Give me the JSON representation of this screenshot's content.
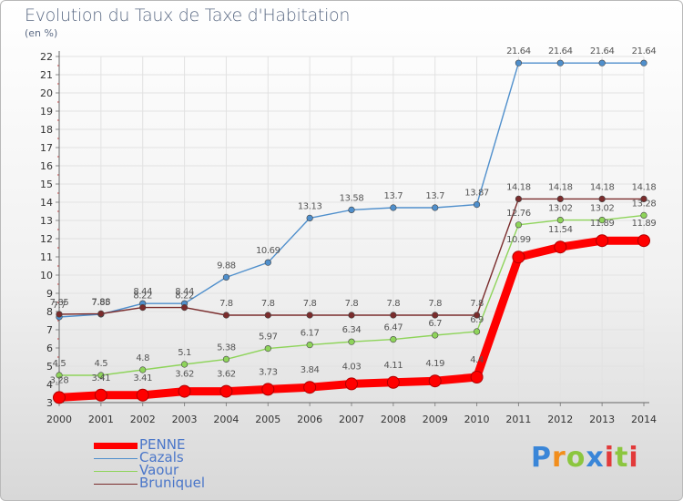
{
  "title": "Evolution du Taux de Taxe d'Habitation",
  "unit": "(en %)",
  "logo": "Proxiti",
  "chart_data": {
    "type": "line",
    "title": "Evolution du Taux de Taxe d'Habitation",
    "ylabel": "(en %)",
    "xlabel": "",
    "ylim": [
      3,
      22
    ],
    "grid": true,
    "legend_position": "bottom-left",
    "x": [
      "2000",
      "2001",
      "2002",
      "2003",
      "2004",
      "2005",
      "2006",
      "2007",
      "2008",
      "2009",
      "2010",
      "2011",
      "2012",
      "2013",
      "2014"
    ],
    "yticks": [
      "3",
      "4",
      "5",
      "6",
      "7",
      "8",
      "9",
      "10",
      "11",
      "12",
      "13",
      "14",
      "15",
      "16",
      "17",
      "18",
      "19",
      "20",
      "21",
      "22"
    ],
    "series": [
      {
        "name": "PENNE",
        "color": "#ff0000",
        "labels": [
          "3.28",
          "3.41",
          "3.41",
          "3.62",
          "3.62",
          "3.73",
          "3.84",
          "4.03",
          "4.11",
          "4.19",
          "4.4",
          "10.99",
          "11.54",
          "11.89",
          "11.89"
        ],
        "values": [
          3.28,
          3.41,
          3.41,
          3.62,
          3.62,
          3.73,
          3.84,
          4.03,
          4.11,
          4.19,
          4.4,
          10.99,
          11.54,
          11.89,
          11.89
        ]
      },
      {
        "name": "Cazals",
        "color": "#4f8fcc",
        "labels": [
          "7.7",
          "7.85",
          "8.44",
          "8.44",
          "9.88",
          "10.69",
          "13.13",
          "13.58",
          "13.7",
          "13.7",
          "13.87",
          "21.64",
          "21.64",
          "21.64",
          "21.64"
        ],
        "values": [
          7.7,
          7.85,
          8.44,
          8.44,
          9.88,
          10.69,
          13.13,
          13.58,
          13.7,
          13.7,
          13.87,
          21.64,
          21.64,
          21.64,
          21.64
        ]
      },
      {
        "name": "Vaour",
        "color": "#8ed45a",
        "labels": [
          "4.5",
          "4.5",
          "4.8",
          "5.1",
          "5.38",
          "5.97",
          "6.17",
          "6.34",
          "6.47",
          "6.7",
          "6.9",
          "12.76",
          "13.02",
          "13.02",
          "13.28"
        ],
        "values": [
          4.5,
          4.5,
          4.8,
          5.1,
          5.38,
          5.97,
          6.17,
          6.34,
          6.47,
          6.7,
          6.9,
          12.76,
          13.02,
          13.02,
          13.28
        ]
      },
      {
        "name": "Bruniquel",
        "color": "#7a2c2c",
        "labels": [
          "7.85",
          "7.88",
          "8.22",
          "8.22",
          "7.8",
          "7.8",
          "7.8",
          "7.8",
          "7.8",
          "7.8",
          "7.8",
          "14.18",
          "14.18",
          "14.18",
          "14.18"
        ],
        "values": [
          7.85,
          7.88,
          8.22,
          8.22,
          7.8,
          7.8,
          7.8,
          7.8,
          7.8,
          7.8,
          7.8,
          14.18,
          14.18,
          14.18,
          14.18
        ]
      }
    ]
  }
}
